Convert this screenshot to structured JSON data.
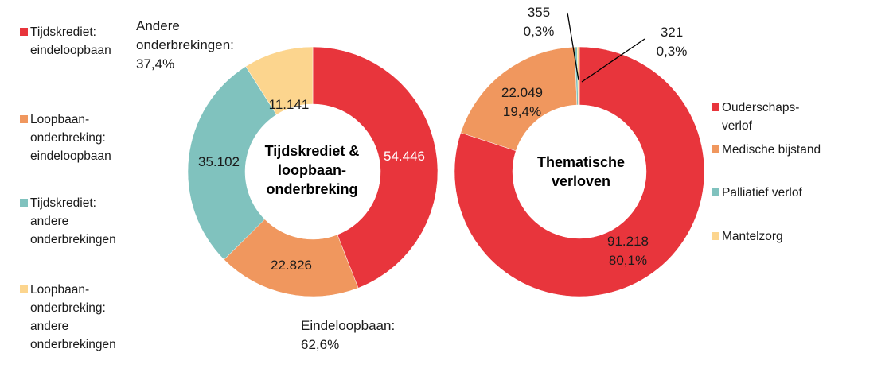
{
  "chart_data": [
    {
      "type": "pie",
      "variant": "donut",
      "center_title": [
        "Tijdskrediet &",
        "loopbaan-",
        "onderbreking"
      ],
      "categories": [
        "Tijdskrediet: eindeloopbaan",
        "Loopbaan-onderbreking: eindeloopbaan",
        "Tijdskrediet: andere onderbrekingen",
        "Loopbaan-onderbreking: andere onderbrekingen"
      ],
      "values": [
        54446,
        22826,
        35102,
        11141
      ],
      "data_labels": [
        "54.446",
        "22.826",
        "35.102",
        "11.141"
      ],
      "colors": [
        "#e8353c",
        "#f0975e",
        "#80c2be",
        "#fcd58e"
      ],
      "group_annotations": [
        {
          "lines": [
            "Andere",
            "onderbrekingen:",
            "37,4%"
          ]
        },
        {
          "lines": [
            "Eindeloopbaan:",
            "62,6%"
          ]
        }
      ],
      "legend": {
        "position": "left",
        "entries": [
          {
            "lines": [
              "Tijdskrediet:",
              "eindeloopbaan"
            ],
            "color": "#e8353c"
          },
          {
            "lines": [
              "Loopbaan-",
              "onderbreking:",
              "eindeloopbaan"
            ],
            "color": "#f0975e"
          },
          {
            "lines": [
              "Tijdskrediet:",
              "andere",
              "onderbrekingen"
            ],
            "color": "#80c2be"
          },
          {
            "lines": [
              "Loopbaan-",
              "onderbreking:",
              "andere",
              "onderbrekingen"
            ],
            "color": "#fcd58e"
          }
        ]
      }
    },
    {
      "type": "pie",
      "variant": "donut",
      "center_title": [
        "Thematische",
        "verloven"
      ],
      "categories": [
        "Ouderschapsverlof",
        "Medische bijstand",
        "Palliatief verlof",
        "Mantelzorg"
      ],
      "values": [
        91218,
        22049,
        355,
        321
      ],
      "data_labels": [
        [
          "91.218",
          "80,1%"
        ],
        [
          "22.049",
          "19,4%"
        ],
        [
          "355",
          "0,3%"
        ],
        [
          "321",
          "0,3%"
        ]
      ],
      "colors": [
        "#e8353c",
        "#f0975e",
        "#80c2be",
        "#fcd58e"
      ],
      "legend": {
        "position": "right",
        "entries": [
          {
            "lines": [
              "Ouderschaps-",
              "verlof"
            ],
            "color": "#e8353c"
          },
          {
            "lines": [
              "Medische bijstand"
            ],
            "color": "#f0975e"
          },
          {
            "lines": [
              "Palliatief verlof"
            ],
            "color": "#80c2be"
          },
          {
            "lines": [
              "Mantelzorg"
            ],
            "color": "#fcd58e"
          }
        ]
      }
    }
  ]
}
